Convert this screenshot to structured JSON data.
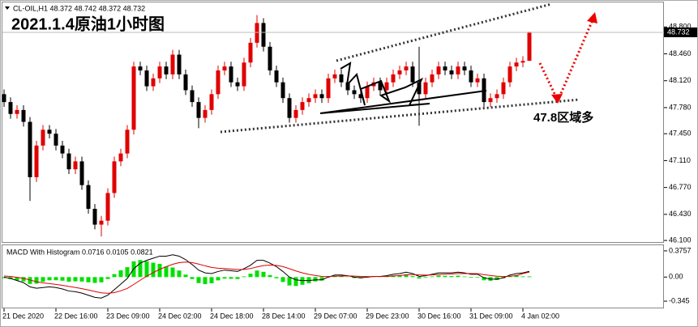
{
  "chart_data": [
    {
      "type": "candlestick",
      "title": "2021.1.4原油1小时图",
      "header": "CL-OIL,H1  48.372 48.742 48.372 48.732",
      "annotation": "47.8区域多",
      "up_color": "#e00000",
      "down_color": "#000000",
      "ylim": [
        46.07,
        49.1
      ],
      "yticks": [
        {
          "value": 48.8,
          "label": "48.800"
        },
        {
          "value": 48.46,
          "label": "48.460"
        },
        {
          "value": 48.12,
          "label": "48.120"
        },
        {
          "value": 47.78,
          "label": "47.780"
        },
        {
          "value": 47.45,
          "label": "47.450"
        },
        {
          "value": 47.11,
          "label": "47.110"
        },
        {
          "value": 46.77,
          "label": "46.770"
        },
        {
          "value": 46.43,
          "label": "46.430"
        },
        {
          "value": 46.1,
          "label": "46.100"
        }
      ],
      "categories": [
        "21 Dec 2020",
        null,
        null,
        null,
        null,
        null,
        null,
        null,
        "22 Dec 16:00",
        null,
        null,
        null,
        null,
        null,
        null,
        null,
        "23 Dec 09:00",
        null,
        null,
        null,
        null,
        null,
        null,
        null,
        "24 Dec 02:00",
        null,
        null,
        null,
        null,
        null,
        null,
        null,
        "24 Dec 18:00",
        null,
        null,
        null,
        null,
        null,
        null,
        null,
        "28 Dec 14:00",
        null,
        null,
        null,
        null,
        null,
        null,
        null,
        "29 Dec 07:00",
        null,
        null,
        null,
        null,
        null,
        null,
        null,
        "29 Dec 23:00",
        null,
        null,
        null,
        null,
        null,
        null,
        null,
        "30 Dec 16:00",
        null,
        null,
        null,
        null,
        null,
        null,
        null,
        "31 Dec 09:00",
        null,
        null,
        null,
        null,
        null,
        null,
        null,
        "4 Jan 02:00",
        null
      ],
      "open": [
        47.95,
        47.85,
        47.7,
        47.75,
        47.6,
        46.9,
        47.3,
        47.5,
        47.45,
        47.3,
        47.2,
        47.0,
        47.1,
        46.8,
        46.5,
        46.3,
        46.35,
        46.7,
        47.1,
        47.2,
        47.5,
        48.3,
        48.25,
        48.05,
        48.15,
        48.3,
        48.2,
        48.45,
        48.2,
        48.0,
        47.85,
        47.65,
        47.75,
        47.95,
        48.25,
        48.3,
        48.1,
        48.05,
        48.35,
        48.6,
        48.85,
        48.55,
        48.25,
        48.1,
        47.9,
        47.65,
        47.75,
        47.85,
        47.9,
        47.95,
        47.9,
        48.15,
        48.2,
        48.1,
        48.0,
        47.95,
        47.9,
        48.05,
        48.1,
        48.0,
        48.1,
        48.2,
        48.25,
        48.3,
        48.1,
        47.95,
        48.1,
        48.2,
        48.3,
        48.25,
        48.2,
        48.3,
        48.25,
        48.1,
        48.15,
        47.85,
        47.9,
        47.95,
        48.1,
        48.3,
        48.35,
        48.372
      ],
      "high": [
        48.01,
        47.91,
        47.81,
        47.81,
        47.66,
        47.36,
        47.56,
        47.56,
        47.51,
        47.36,
        47.26,
        47.16,
        47.16,
        46.86,
        46.56,
        46.41,
        46.76,
        47.16,
        47.26,
        47.56,
        48.36,
        48.36,
        48.31,
        48.21,
        48.36,
        48.36,
        48.51,
        48.51,
        48.26,
        48.06,
        47.91,
        47.81,
        48.01,
        48.31,
        48.36,
        48.36,
        48.16,
        48.41,
        48.66,
        48.95,
        48.91,
        48.61,
        48.31,
        48.16,
        47.96,
        47.81,
        47.91,
        47.96,
        48.01,
        48.01,
        48.21,
        48.26,
        48.26,
        48.16,
        48.06,
        48.01,
        48.11,
        48.16,
        48.16,
        48.16,
        48.26,
        48.31,
        48.36,
        48.36,
        48.55,
        48.16,
        48.26,
        48.36,
        48.36,
        48.31,
        48.36,
        48.36,
        48.31,
        48.21,
        48.21,
        47.96,
        48.01,
        48.16,
        48.36,
        48.41,
        48.43,
        48.742
      ],
      "low": [
        47.79,
        47.64,
        47.64,
        47.54,
        46.6,
        46.84,
        47.24,
        47.39,
        47.24,
        47.14,
        46.94,
        46.94,
        46.74,
        46.44,
        46.24,
        46.15,
        46.29,
        46.64,
        47.04,
        47.14,
        47.44,
        48.19,
        47.99,
        47.99,
        48.09,
        48.14,
        48.14,
        48.14,
        47.94,
        47.79,
        47.52,
        47.59,
        47.69,
        47.89,
        48.19,
        48.04,
        47.99,
        47.99,
        48.29,
        48.54,
        48.49,
        48.19,
        48.04,
        47.84,
        47.59,
        47.59,
        47.69,
        47.79,
        47.84,
        47.84,
        47.84,
        48.09,
        48.04,
        47.94,
        47.89,
        47.84,
        47.84,
        47.99,
        47.94,
        47.94,
        48.04,
        48.14,
        48.19,
        48.04,
        47.55,
        47.89,
        48.04,
        48.14,
        48.19,
        48.14,
        48.14,
        48.19,
        48.04,
        48.04,
        47.79,
        47.79,
        47.84,
        47.89,
        48.04,
        48.24,
        48.29,
        48.372
      ],
      "close": [
        47.85,
        47.7,
        47.75,
        47.6,
        46.9,
        47.3,
        47.5,
        47.45,
        47.3,
        47.2,
        47.0,
        47.1,
        46.8,
        46.5,
        46.3,
        46.35,
        46.7,
        47.1,
        47.2,
        47.5,
        48.3,
        48.25,
        48.05,
        48.15,
        48.3,
        48.2,
        48.45,
        48.2,
        48.0,
        47.85,
        47.65,
        47.75,
        47.95,
        48.25,
        48.3,
        48.1,
        48.05,
        48.35,
        48.6,
        48.85,
        48.55,
        48.25,
        48.1,
        47.9,
        47.65,
        47.75,
        47.85,
        47.9,
        47.95,
        47.9,
        48.15,
        48.2,
        48.1,
        48.0,
        47.95,
        47.9,
        48.05,
        48.1,
        48.0,
        48.1,
        48.2,
        48.25,
        48.3,
        48.1,
        47.95,
        48.1,
        48.2,
        48.3,
        48.25,
        48.2,
        48.3,
        48.25,
        48.1,
        48.15,
        47.85,
        47.9,
        47.95,
        48.1,
        48.3,
        48.35,
        48.37,
        48.732
      ]
    },
    {
      "type": "macd",
      "title": "MACD With Histogram 0.0716 0.0105 0.0821",
      "ylim": [
        -0.437,
        0.456
      ],
      "yticks": [
        0.3757,
        {
          "value": 0,
          "label": "0.00"
        },
        -0.345
      ],
      "histogram": {
        "color": "#00e000",
        "values": [
          -0.016,
          -0.029,
          -0.047,
          -0.062,
          -0.098,
          -0.094,
          -0.067,
          -0.046,
          -0.045,
          -0.052,
          -0.066,
          -0.061,
          -0.064,
          -0.075,
          -0.084,
          -0.075,
          -0.028,
          0.042,
          0.097,
          0.142,
          0.225,
          0.244,
          0.227,
          0.206,
          0.189,
          0.151,
          0.137,
          0.094,
          0.035,
          -0.028,
          -0.086,
          -0.101,
          -0.089,
          -0.047,
          -0.022,
          -0.025,
          -0.028,
          0.01,
          0.048,
          0.094,
          0.075,
          0.028,
          -0.017,
          -0.07,
          -0.12,
          -0.128,
          -0.11,
          -0.088,
          -0.062,
          -0.05,
          -0.008,
          0.018,
          0.014,
          0.003,
          -0.014,
          -0.019,
          -0.007,
          0.002,
          0.002,
          0.01,
          0.024,
          0.027,
          0.038,
          0.014,
          -0.021,
          -0.009,
          0.009,
          0.023,
          0.018,
          0.015,
          0.02,
          0.008,
          -0.01,
          -0.008,
          -0.046,
          -0.053,
          -0.042,
          -0.018,
          0.018,
          0.03,
          0.01,
          0.0105
        ]
      },
      "lines": [
        {
          "color": "#000000",
          "values": [
            0.0,
            -0.02,
            -0.05,
            -0.08,
            -0.14,
            -0.16,
            -0.15,
            -0.14,
            -0.15,
            -0.17,
            -0.2,
            -0.21,
            -0.23,
            -0.26,
            -0.29,
            -0.3,
            -0.26,
            -0.18,
            -0.1,
            -0.02,
            0.12,
            0.2,
            0.24,
            0.27,
            0.3,
            0.3,
            0.32,
            0.3,
            0.25,
            0.18,
            0.1,
            0.06,
            0.05,
            0.08,
            0.1,
            0.09,
            0.08,
            0.12,
            0.17,
            0.24,
            0.24,
            0.2,
            0.15,
            0.08,
            0.0,
            -0.04,
            -0.05,
            -0.05,
            -0.04,
            -0.04,
            0.0,
            0.03,
            0.03,
            0.02,
            0.0,
            -0.01,
            0.0,
            0.01,
            0.01,
            0.02,
            0.04,
            0.05,
            0.07,
            0.05,
            0.01,
            0.02,
            0.04,
            0.06,
            0.06,
            0.06,
            0.07,
            0.06,
            0.04,
            0.04,
            -0.01,
            -0.03,
            -0.03,
            -0.01,
            0.03,
            0.05,
            0.06,
            0.0821
          ]
        },
        {
          "color": "#e00000",
          "values": [
            0.016,
            0.009,
            -0.003,
            -0.018,
            -0.042,
            -0.066,
            -0.083,
            -0.094,
            -0.105,
            -0.118,
            -0.134,
            -0.149,
            -0.166,
            -0.185,
            -0.206,
            -0.225,
            -0.232,
            -0.222,
            -0.197,
            -0.162,
            -0.105,
            -0.044,
            0.013,
            0.064,
            0.111,
            0.149,
            0.183,
            0.206,
            0.215,
            0.208,
            0.186,
            0.161,
            0.139,
            0.127,
            0.122,
            0.115,
            0.108,
            0.11,
            0.122,
            0.146,
            0.165,
            0.172,
            0.167,
            0.15,
            0.12,
            0.088,
            0.06,
            0.038,
            0.022,
            0.01,
            0.008,
            0.012,
            0.016,
            0.017,
            0.014,
            0.009,
            0.007,
            0.008,
            0.008,
            0.01,
            0.016,
            0.023,
            0.032,
            0.036,
            0.031,
            0.029,
            0.031,
            0.037,
            0.042,
            0.045,
            0.05,
            0.052,
            0.05,
            0.048,
            0.036,
            0.023,
            0.012,
            0.008,
            0.012,
            0.02,
            0.05,
            0.0716
          ]
        }
      ]
    }
  ]
}
